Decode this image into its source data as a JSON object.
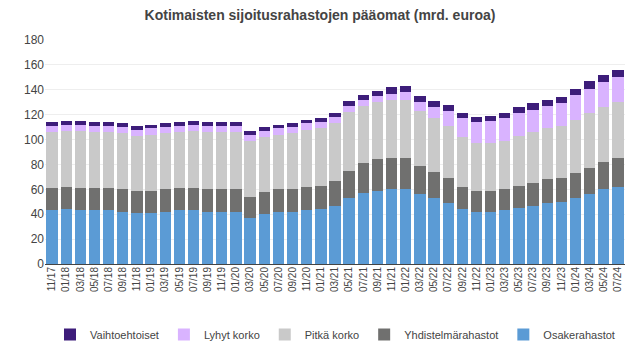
{
  "chart_data": {
    "type": "bar",
    "stacked": true,
    "title": "Kotimaisten sijoitusrahastojen pääomat (mrd. euroa)",
    "categories": [
      "11/17",
      "01/18",
      "03/18",
      "05/18",
      "07/18",
      "09/18",
      "11/18",
      "01/19",
      "03/19",
      "05/19",
      "07/19",
      "09/19",
      "11/19",
      "01/20",
      "03/20",
      "05/20",
      "07/20",
      "09/20",
      "11/20",
      "01/21",
      "03/21",
      "05/21",
      "07/21",
      "09/21",
      "11/21",
      "01/22",
      "03/22",
      "05/22",
      "07/22",
      "09/22",
      "11/22",
      "01/23",
      "03/23",
      "05/23",
      "07/23",
      "09/23",
      "11/23",
      "01/24",
      "03/24",
      "05/24",
      "07/24"
    ],
    "series": [
      {
        "name": "Osakerahastot",
        "color": "#5B9BD5",
        "values": [
          43,
          44,
          43,
          43,
          43,
          42,
          41,
          41,
          42,
          43,
          43,
          42,
          42,
          42,
          37,
          40,
          42,
          42,
          43,
          44,
          47,
          53,
          57,
          59,
          60,
          60,
          56,
          53,
          49,
          44,
          42,
          42,
          43,
          45,
          47,
          49,
          50,
          53,
          56,
          60,
          62
        ]
      },
      {
        "name": "Yhdistelmärahastot",
        "color": "#70706F",
        "values": [
          18,
          18,
          18,
          18,
          18,
          18,
          18,
          18,
          18,
          18,
          18,
          18,
          18,
          18,
          17,
          18,
          18,
          18,
          19,
          19,
          20,
          22,
          24,
          25,
          25,
          25,
          23,
          21,
          20,
          18,
          17,
          17,
          17,
          18,
          18,
          19,
          19,
          20,
          21,
          22,
          23
        ]
      },
      {
        "name": "Pitkä korko",
        "color": "#C9C9C9",
        "values": [
          45,
          45,
          46,
          45,
          45,
          45,
          44,
          45,
          45,
          45,
          46,
          46,
          46,
          46,
          45,
          44,
          44,
          45,
          46,
          46,
          46,
          47,
          46,
          46,
          47,
          47,
          44,
          43,
          42,
          40,
          38,
          38,
          39,
          40,
          41,
          41,
          42,
          43,
          44,
          44,
          45
        ]
      },
      {
        "name": "Lyhyt korko",
        "color": "#D9B3FF",
        "values": [
          5,
          5,
          5,
          5,
          5,
          5,
          5,
          5,
          5,
          5,
          5,
          5,
          5,
          5,
          5,
          5,
          5,
          5,
          5,
          5,
          5,
          5,
          5,
          5,
          5,
          6,
          7,
          9,
          12,
          15,
          17,
          18,
          18,
          18,
          18,
          18,
          18,
          20,
          20,
          20,
          20
        ]
      },
      {
        "name": "Vaihtoehtoiset",
        "color": "#3D1D7A",
        "values": [
          3,
          3,
          3,
          3,
          3,
          3,
          3,
          3,
          3,
          3,
          3,
          3,
          3,
          3,
          3,
          3,
          3,
          3,
          3,
          3,
          3,
          4,
          4,
          4,
          5,
          5,
          5,
          5,
          5,
          4,
          4,
          4,
          4,
          5,
          5,
          5,
          5,
          5,
          6,
          6,
          6
        ]
      }
    ],
    "ylim": [
      0,
      180
    ],
    "yticks": [
      0,
      20,
      40,
      60,
      80,
      100,
      120,
      140,
      160,
      180
    ],
    "grid": true,
    "legend": "bottom"
  }
}
